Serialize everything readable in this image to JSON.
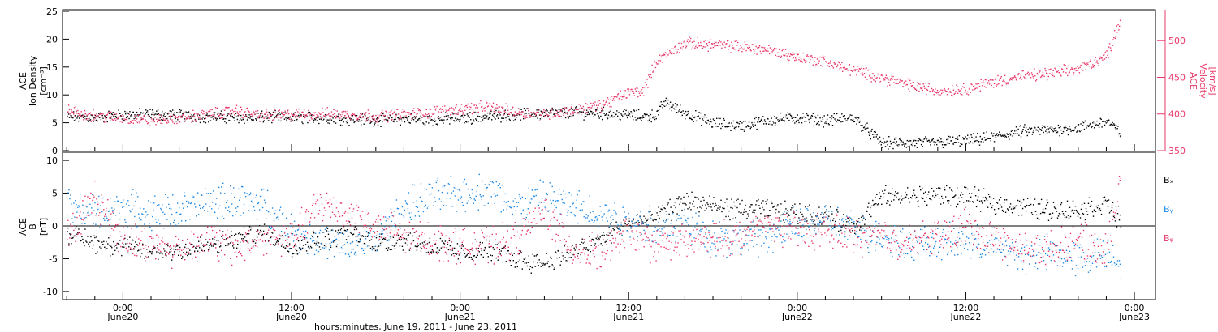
{
  "chart_data": [
    {
      "type": "scatter",
      "panel": "top",
      "title": "",
      "ylabel": [
        "ACE",
        "Ion Density",
        "[cm⁻³]"
      ],
      "ylabel_right": [
        "ACE",
        "Velocity",
        "[km/s]"
      ],
      "ylim": [
        0,
        25
      ],
      "yticks": [
        "0",
        "5",
        "10",
        "15",
        "20",
        "25"
      ],
      "ylim_right": [
        350,
        540
      ],
      "yticks_right": [
        "350",
        "400",
        "450",
        "500"
      ],
      "x": [
        -4,
        -2,
        0,
        2,
        4,
        6,
        8,
        10,
        12,
        14,
        16,
        18,
        20,
        22,
        24,
        26,
        28,
        30,
        32,
        34,
        36,
        37,
        38,
        38.5,
        40,
        42,
        44,
        46,
        48,
        50,
        52,
        54,
        56,
        58,
        60,
        62,
        64,
        66,
        68,
        70,
        71
      ],
      "series": [
        {
          "name": "",
          "color": "#000000",
          "axis": "left",
          "values": [
            6.2,
            6.0,
            6.5,
            6.6,
            6.4,
            6.2,
            6.0,
            6.1,
            6.0,
            6.0,
            5.8,
            5.6,
            5.8,
            5.6,
            5.9,
            6.2,
            6.6,
            6.8,
            6.9,
            6.8,
            6.5,
            6.2,
            6.5,
            8.8,
            6.8,
            5.0,
            4.5,
            5.6,
            6.0,
            5.5,
            6.0,
            1.4,
            1.4,
            1.6,
            1.8,
            2.5,
            3.6,
            3.8,
            4.2,
            5.4,
            3.2
          ]
        },
        {
          "name": "",
          "color": "#e8386a",
          "axis": "right",
          "values": [
            405,
            398,
            395,
            392,
            395,
            400,
            405,
            398,
            400,
            401,
            400,
            398,
            400,
            403,
            408,
            410,
            403,
            400,
            406,
            412,
            430,
            432,
            475,
            480,
            497,
            495,
            492,
            488,
            478,
            472,
            460,
            450,
            440,
            432,
            435,
            445,
            452,
            456,
            462,
            480,
            530
          ]
        }
      ]
    },
    {
      "type": "scatter",
      "panel": "bottom",
      "title": "",
      "ylabel": [
        "ACE",
        "B",
        "[nT]"
      ],
      "ylim": [
        -11,
        11
      ],
      "yticks": [
        "-10",
        "-5",
        "0",
        "5",
        "10"
      ],
      "x": [
        -4,
        -2,
        0,
        2,
        4,
        6,
        8,
        10,
        12,
        14,
        16,
        18,
        20,
        22,
        24,
        26,
        28,
        30,
        32,
        34,
        36,
        37,
        38,
        38.5,
        40,
        42,
        44,
        46,
        48,
        50,
        52,
        54,
        56,
        58,
        60,
        62,
        64,
        66,
        68,
        70,
        71
      ],
      "series": [
        {
          "name": "Bₓ",
          "color": "#000000",
          "values": [
            -1.0,
            -2.5,
            -3.0,
            -4.0,
            -3.5,
            -3.0,
            -2.0,
            -1.0,
            -3.0,
            -2.0,
            -1.0,
            -2.5,
            -2.0,
            -3.0,
            -4.0,
            -3.5,
            -5.0,
            -5.5,
            -4.0,
            -2.0,
            0.5,
            1.0,
            1.5,
            2.0,
            4.0,
            3.0,
            2.5,
            2.5,
            2.0,
            1.5,
            0.0,
            4.5,
            4.5,
            4.8,
            4.5,
            3.5,
            3.0,
            2.5,
            2.5,
            3.5,
            1.0
          ]
        },
        {
          "name": "Bᵧ",
          "color": "#1e8ae6",
          "values": [
            3.0,
            2.0,
            3.0,
            2.0,
            2.5,
            3.5,
            4.0,
            3.5,
            -1.0,
            -2.0,
            -3.5,
            -2.0,
            3.0,
            4.5,
            5.0,
            5.5,
            3.0,
            4.5,
            3.0,
            2.0,
            1.0,
            0.5,
            -1.0,
            0.0,
            0.5,
            -1.5,
            -2.0,
            -1.5,
            0.5,
            1.0,
            -0.5,
            -1.5,
            -2.5,
            -2.5,
            -2.5,
            -3.0,
            -4.5,
            -4.0,
            -5.0,
            -4.0,
            -5.0
          ]
        },
        {
          "name": "Bᵩ",
          "color": "#e8386a",
          "values": [
            -2.0,
            4.5,
            -2.0,
            -3.0,
            -3.5,
            -2.0,
            -3.5,
            -1.5,
            -2.0,
            3.5,
            2.0,
            0.0,
            -1.5,
            -2.0,
            -3.0,
            -3.0,
            -2.0,
            2.5,
            -3.5,
            -4.0,
            -1.0,
            -2.0,
            -3.0,
            -2.5,
            -2.5,
            -2.0,
            -1.5,
            0.5,
            -1.0,
            -0.5,
            -1.5,
            -1.5,
            -2.5,
            -1.5,
            0.0,
            -2.0,
            -3.5,
            -3.5,
            -2.0,
            -4.0,
            8.0
          ]
        }
      ]
    }
  ],
  "x_axis": {
    "tick_labels_time": [
      "0:00",
      "12:00",
      "0:00",
      "12:00",
      "0:00",
      "12:00",
      "0:00"
    ],
    "tick_labels_date": [
      "June20",
      "June20",
      "June21",
      "June21",
      "June22",
      "June22",
      "June23"
    ],
    "xlabel": "hours:minutes, June 19, 2011 - June 23, 2011",
    "range_hours": [
      -4.3,
      73.5
    ]
  }
}
